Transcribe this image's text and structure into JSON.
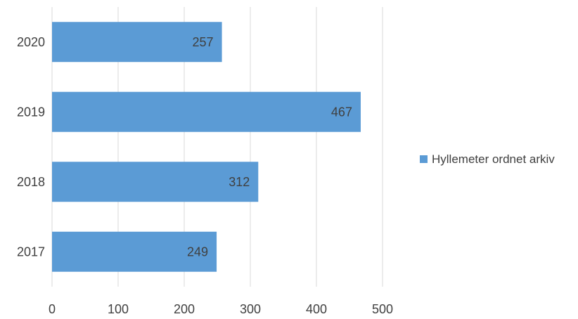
{
  "chart_data": {
    "type": "bar",
    "orientation": "horizontal",
    "categories": [
      "2017",
      "2018",
      "2019",
      "2020"
    ],
    "series": [
      {
        "name": "Hyllemeter ordnet arkiv",
        "values": [
          249,
          312,
          467,
          257
        ],
        "color": "#5b9bd5"
      }
    ],
    "xticks": [
      0,
      100,
      200,
      300,
      400,
      500
    ],
    "xlim": [
      0,
      500
    ],
    "grid": "vertical",
    "gridline_color": "#d9d9d9",
    "axis_text_color": "#404040",
    "legend_position": "right",
    "data_labels": "inside-end"
  }
}
